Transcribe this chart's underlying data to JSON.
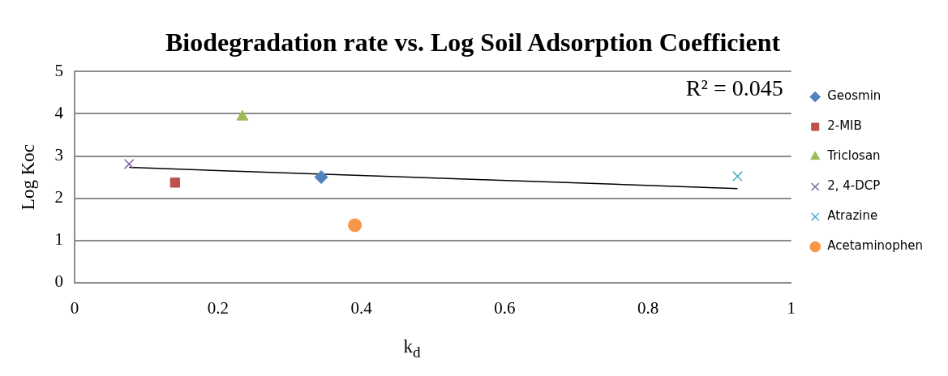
{
  "chart_data": {
    "type": "scatter",
    "title": "Biodegradation rate vs. Log Soil Adsorption Coefficient",
    "xlabel": "k$_{d}$",
    "ylabel": "Log Koc",
    "series": [
      {
        "name": "Geosmin",
        "color": "#4f81bd",
        "marker": "diamond",
        "x": [
          0.344
        ],
        "values": [
          2.5
        ]
      },
      {
        "name": "2-MIB",
        "color": "#c0504d",
        "marker": "square",
        "x": [
          0.14
        ],
        "values": [
          2.37
        ]
      },
      {
        "name": "Triclosan",
        "color": "#9bbb59",
        "marker": "triangle",
        "x": [
          0.234
        ],
        "values": [
          3.93
        ]
      },
      {
        "name": "2, 4-DCP",
        "color": "#8064a2",
        "marker": "cross",
        "x": [
          0.076
        ],
        "values": [
          2.81
        ]
      },
      {
        "name": "Atrazine",
        "color": "#4bacc6",
        "marker": "cross",
        "x": [
          0.925
        ],
        "values": [
          2.52
        ]
      },
      {
        "name": "Acetaminophen",
        "color": "#f79646",
        "marker": "circle",
        "x": [
          0.391
        ],
        "values": [
          1.36
        ]
      },
      {
        "type": "line",
        "color": "#000000",
        "marker": "none",
        "x": [
          0.076,
          0.925
        ],
        "values": [
          2.73,
          2.23
        ]
      }
    ],
    "annotations": [
      "R² = 0.045"
    ],
    "xlim": [
      0,
      1
    ],
    "xticks": [
      0,
      0.2,
      0.4,
      0.6,
      0.8,
      1
    ],
    "ylim": [
      0,
      5
    ],
    "yticks": [
      0,
      1,
      2,
      3,
      4,
      5
    ],
    "grid": "y",
    "legend": "right"
  }
}
